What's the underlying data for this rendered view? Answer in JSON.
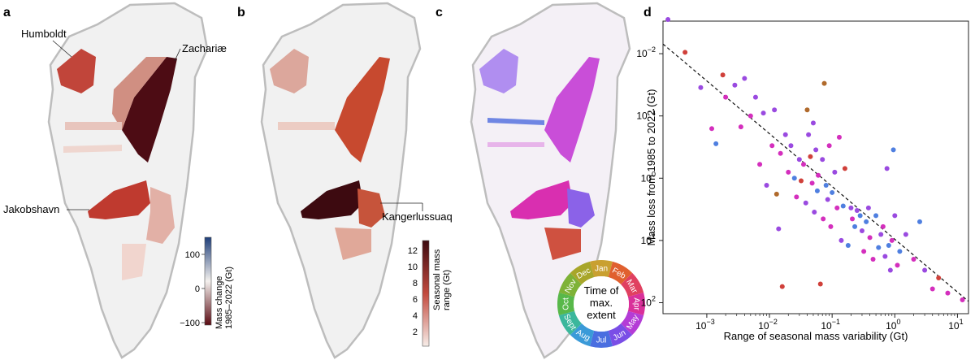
{
  "panels": {
    "a": {
      "letter": "a",
      "labels": [
        "Humboldt",
        "Zachariæ",
        "Jakobshavn"
      ],
      "colorbar": {
        "title": [
          "Mass change",
          "1985–2022 (Gt)"
        ],
        "ticks": [
          "100",
          "0",
          "−100"
        ],
        "colors": [
          "#1f3f7a",
          "#f4f1ee",
          "#5a0a12"
        ]
      }
    },
    "b": {
      "letter": "b",
      "labels": [
        "Kangerlussuaq"
      ],
      "colorbar": {
        "title": [
          "Seasonal mass",
          "range (Gt)"
        ],
        "ticks": [
          "12",
          "10",
          "8",
          "6",
          "4",
          "2"
        ],
        "colors": [
          "#3d0a10",
          "#c24a3e",
          "#f7ede8"
        ]
      }
    },
    "c": {
      "letter": "c",
      "wheel_title": [
        "Time of",
        "max.",
        "extent"
      ],
      "months": [
        "Jan",
        "Feb",
        "Mar",
        "Apr",
        "May",
        "Jun",
        "Jul",
        "Aug",
        "Sept",
        "Oct",
        "Nov",
        "Dec"
      ]
    },
    "d": {
      "letter": "d"
    }
  },
  "chart_data": {
    "type": "scatter",
    "xlabel": "Range of seasonal mass variability (Gt)",
    "ylabel": "Mass loss from 1985 to 2022 (Gt)",
    "x_scale": "log",
    "y_scale": "log-reversed",
    "xlim": [
      0.0002,
      15
    ],
    "ylim": [
      0.003,
      150
    ],
    "x_ticks": [
      {
        "v": 0.001,
        "b": "10",
        "e": "−3"
      },
      {
        "v": 0.01,
        "b": "10",
        "e": "−2"
      },
      {
        "v": 0.1,
        "b": "10",
        "e": "−1"
      },
      {
        "v": 1,
        "b": "10",
        "e": "0"
      },
      {
        "v": 10,
        "b": "10",
        "e": "1"
      }
    ],
    "y_ticks": [
      {
        "v": 0.01,
        "b": "10",
        "e": "−2"
      },
      {
        "v": 0.1,
        "b": "10",
        "e": "−1"
      },
      {
        "v": 1,
        "b": "10",
        "e": "0"
      },
      {
        "v": 10,
        "b": "10",
        "e": "1"
      },
      {
        "v": 100,
        "b": "10",
        "e": "2"
      }
    ],
    "fit_line": {
      "x": [
        0.0002,
        15
      ],
      "y": [
        0.007,
        95
      ]
    },
    "point_colors": {
      "orange": "#d1742a",
      "red": "#d0403a",
      "magenta": "#d42fbd",
      "purple": "#9a4ae0",
      "blue": "#4f7fe0",
      "brown": "#b06a2c"
    },
    "points": [
      {
        "x": 0.00024,
        "y": 0.0027,
        "c": "purple"
      },
      {
        "x": 0.00045,
        "y": 0.0095,
        "c": "red"
      },
      {
        "x": 0.0008,
        "y": 0.035,
        "c": "purple"
      },
      {
        "x": 0.0012,
        "y": 0.16,
        "c": "magenta"
      },
      {
        "x": 0.0014,
        "y": 0.28,
        "c": "blue"
      },
      {
        "x": 0.0018,
        "y": 0.022,
        "c": "red"
      },
      {
        "x": 0.002,
        "y": 0.05,
        "c": "magenta"
      },
      {
        "x": 0.0028,
        "y": 0.032,
        "c": "purple"
      },
      {
        "x": 0.0035,
        "y": 0.15,
        "c": "magenta"
      },
      {
        "x": 0.004,
        "y": 0.025,
        "c": "purple"
      },
      {
        "x": 0.005,
        "y": 0.1,
        "c": "magenta"
      },
      {
        "x": 0.006,
        "y": 0.05,
        "c": "purple"
      },
      {
        "x": 0.007,
        "y": 0.6,
        "c": "magenta"
      },
      {
        "x": 0.008,
        "y": 0.09,
        "c": "purple"
      },
      {
        "x": 0.009,
        "y": 1.3,
        "c": "purple"
      },
      {
        "x": 0.011,
        "y": 0.3,
        "c": "magenta"
      },
      {
        "x": 0.012,
        "y": 0.08,
        "c": "purple"
      },
      {
        "x": 0.013,
        "y": 1.8,
        "c": "brown"
      },
      {
        "x": 0.014,
        "y": 6.5,
        "c": "purple"
      },
      {
        "x": 0.015,
        "y": 0.4,
        "c": "magenta"
      },
      {
        "x": 0.016,
        "y": 55,
        "c": "red"
      },
      {
        "x": 0.018,
        "y": 0.2,
        "c": "purple"
      },
      {
        "x": 0.02,
        "y": 0.8,
        "c": "magenta"
      },
      {
        "x": 0.022,
        "y": 0.3,
        "c": "purple"
      },
      {
        "x": 0.025,
        "y": 1.0,
        "c": "blue"
      },
      {
        "x": 0.027,
        "y": 2.0,
        "c": "magenta"
      },
      {
        "x": 0.03,
        "y": 0.5,
        "c": "purple"
      },
      {
        "x": 0.032,
        "y": 1.1,
        "c": "red"
      },
      {
        "x": 0.035,
        "y": 0.6,
        "c": "magenta"
      },
      {
        "x": 0.038,
        "y": 2.5,
        "c": "purple"
      },
      {
        "x": 0.04,
        "y": 0.08,
        "c": "brown"
      },
      {
        "x": 0.042,
        "y": 0.2,
        "c": "purple"
      },
      {
        "x": 0.045,
        "y": 0.45,
        "c": "red"
      },
      {
        "x": 0.048,
        "y": 1.2,
        "c": "magenta"
      },
      {
        "x": 0.05,
        "y": 0.13,
        "c": "purple"
      },
      {
        "x": 0.052,
        "y": 3.5,
        "c": "purple"
      },
      {
        "x": 0.055,
        "y": 0.35,
        "c": "purple"
      },
      {
        "x": 0.058,
        "y": 1.6,
        "c": "blue"
      },
      {
        "x": 0.06,
        "y": 0.9,
        "c": "magenta"
      },
      {
        "x": 0.065,
        "y": 50,
        "c": "red"
      },
      {
        "x": 0.07,
        "y": 0.5,
        "c": "purple"
      },
      {
        "x": 0.072,
        "y": 4.5,
        "c": "magenta"
      },
      {
        "x": 0.075,
        "y": 0.03,
        "c": "brown"
      },
      {
        "x": 0.08,
        "y": 1.3,
        "c": "blue"
      },
      {
        "x": 0.085,
        "y": 2.2,
        "c": "purple"
      },
      {
        "x": 0.09,
        "y": 0.3,
        "c": "magenta"
      },
      {
        "x": 0.095,
        "y": 6.0,
        "c": "magenta"
      },
      {
        "x": 0.1,
        "y": 1.7,
        "c": "blue"
      },
      {
        "x": 0.11,
        "y": 0.8,
        "c": "purple"
      },
      {
        "x": 0.12,
        "y": 3.0,
        "c": "magenta"
      },
      {
        "x": 0.13,
        "y": 0.22,
        "c": "magenta"
      },
      {
        "x": 0.14,
        "y": 10,
        "c": "purple"
      },
      {
        "x": 0.15,
        "y": 2.8,
        "c": "blue"
      },
      {
        "x": 0.16,
        "y": 0.7,
        "c": "red"
      },
      {
        "x": 0.18,
        "y": 12,
        "c": "blue"
      },
      {
        "x": 0.2,
        "y": 3.0,
        "c": "purple"
      },
      {
        "x": 0.21,
        "y": 4.5,
        "c": "magenta"
      },
      {
        "x": 0.23,
        "y": 6.0,
        "c": "blue"
      },
      {
        "x": 0.25,
        "y": 3.3,
        "c": "purple"
      },
      {
        "x": 0.28,
        "y": 4.0,
        "c": "blue"
      },
      {
        "x": 0.3,
        "y": 7.0,
        "c": "purple"
      },
      {
        "x": 0.32,
        "y": 15,
        "c": "magenta"
      },
      {
        "x": 0.35,
        "y": 5.0,
        "c": "blue"
      },
      {
        "x": 0.38,
        "y": 3.0,
        "c": "purple"
      },
      {
        "x": 0.4,
        "y": 9.0,
        "c": "magenta"
      },
      {
        "x": 0.45,
        "y": 20,
        "c": "magenta"
      },
      {
        "x": 0.5,
        "y": 4.0,
        "c": "blue"
      },
      {
        "x": 0.55,
        "y": 13,
        "c": "blue"
      },
      {
        "x": 0.6,
        "y": 8.0,
        "c": "purple"
      },
      {
        "x": 0.65,
        "y": 6.0,
        "c": "magenta"
      },
      {
        "x": 0.7,
        "y": 18,
        "c": "purple"
      },
      {
        "x": 0.75,
        "y": 0.7,
        "c": "purple"
      },
      {
        "x": 0.8,
        "y": 12,
        "c": "blue"
      },
      {
        "x": 0.85,
        "y": 30,
        "c": "purple"
      },
      {
        "x": 0.9,
        "y": 10,
        "c": "magenta"
      },
      {
        "x": 0.95,
        "y": 0.35,
        "c": "blue"
      },
      {
        "x": 1.0,
        "y": 4.0,
        "c": "purple"
      },
      {
        "x": 1.1,
        "y": 25,
        "c": "magenta"
      },
      {
        "x": 1.2,
        "y": 15,
        "c": "blue"
      },
      {
        "x": 1.5,
        "y": 8.0,
        "c": "purple"
      },
      {
        "x": 2.0,
        "y": 20,
        "c": "magenta"
      },
      {
        "x": 2.5,
        "y": 5.0,
        "c": "blue"
      },
      {
        "x": 3.0,
        "y": 30,
        "c": "purple"
      },
      {
        "x": 4.0,
        "y": 60,
        "c": "magenta"
      },
      {
        "x": 5.0,
        "y": 40,
        "c": "red"
      },
      {
        "x": 7.0,
        "y": 70,
        "c": "magenta"
      },
      {
        "x": 12.0,
        "y": 90,
        "c": "magenta"
      }
    ]
  }
}
